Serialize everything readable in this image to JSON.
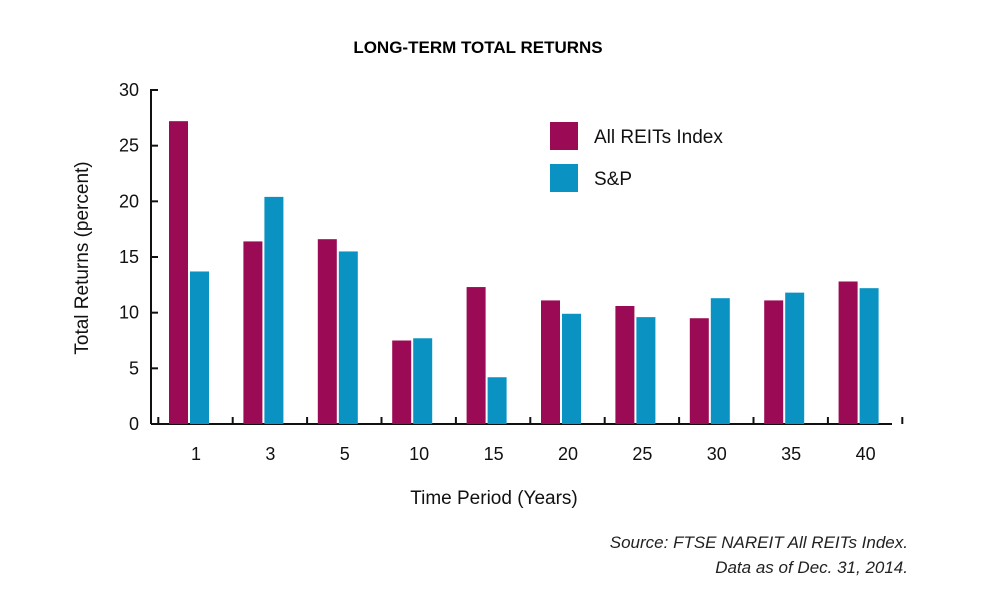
{
  "chart_data": {
    "type": "bar",
    "title": "LONG-TERM TOTAL RETURNS",
    "xlabel": "Time Period (Years)",
    "ylabel": "Total Returns (percent)",
    "categories": [
      "1",
      "3",
      "5",
      "10",
      "15",
      "20",
      "25",
      "30",
      "35",
      "40"
    ],
    "yticks": [
      "0",
      "5",
      "10",
      "15",
      "20",
      "25",
      "30"
    ],
    "ylim": [
      0,
      30
    ],
    "grid": false,
    "legend_position": "top-right",
    "series": [
      {
        "name": "All REITs Index",
        "color": "#9b0a55",
        "values": [
          27.2,
          16.4,
          16.6,
          7.5,
          12.3,
          11.1,
          10.6,
          9.5,
          11.1,
          12.8
        ]
      },
      {
        "name": "S&P",
        "color": "#0a93c2",
        "values": [
          13.7,
          20.4,
          15.5,
          7.7,
          4.2,
          9.9,
          9.6,
          11.3,
          11.8,
          12.2
        ]
      }
    ]
  },
  "source": {
    "line1": "Source: FTSE NAREIT All REITs Index.",
    "line2": "Data as of Dec. 31, 2014."
  }
}
